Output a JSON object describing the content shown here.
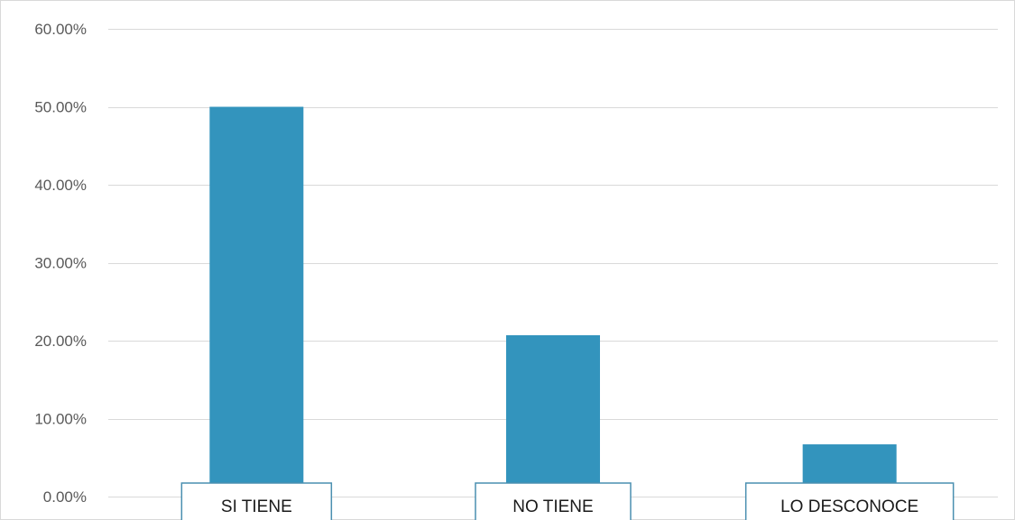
{
  "chart_data": {
    "type": "bar",
    "categories": [
      "SI TIENE",
      "NO TIENE",
      "LO DESCONOCE"
    ],
    "values": [
      50.0,
      20.7,
      6.7
    ],
    "ylim": [
      0,
      60
    ],
    "y_ticks": [
      0,
      10,
      20,
      30,
      40,
      50,
      60
    ],
    "y_tick_labels": [
      "0.00%",
      "10.00%",
      "20.00%",
      "30.00%",
      "40.00%",
      "50.00%",
      "60.00%"
    ],
    "bar_color": "#3394bd",
    "grid": true,
    "category_label_style": "boxed"
  }
}
